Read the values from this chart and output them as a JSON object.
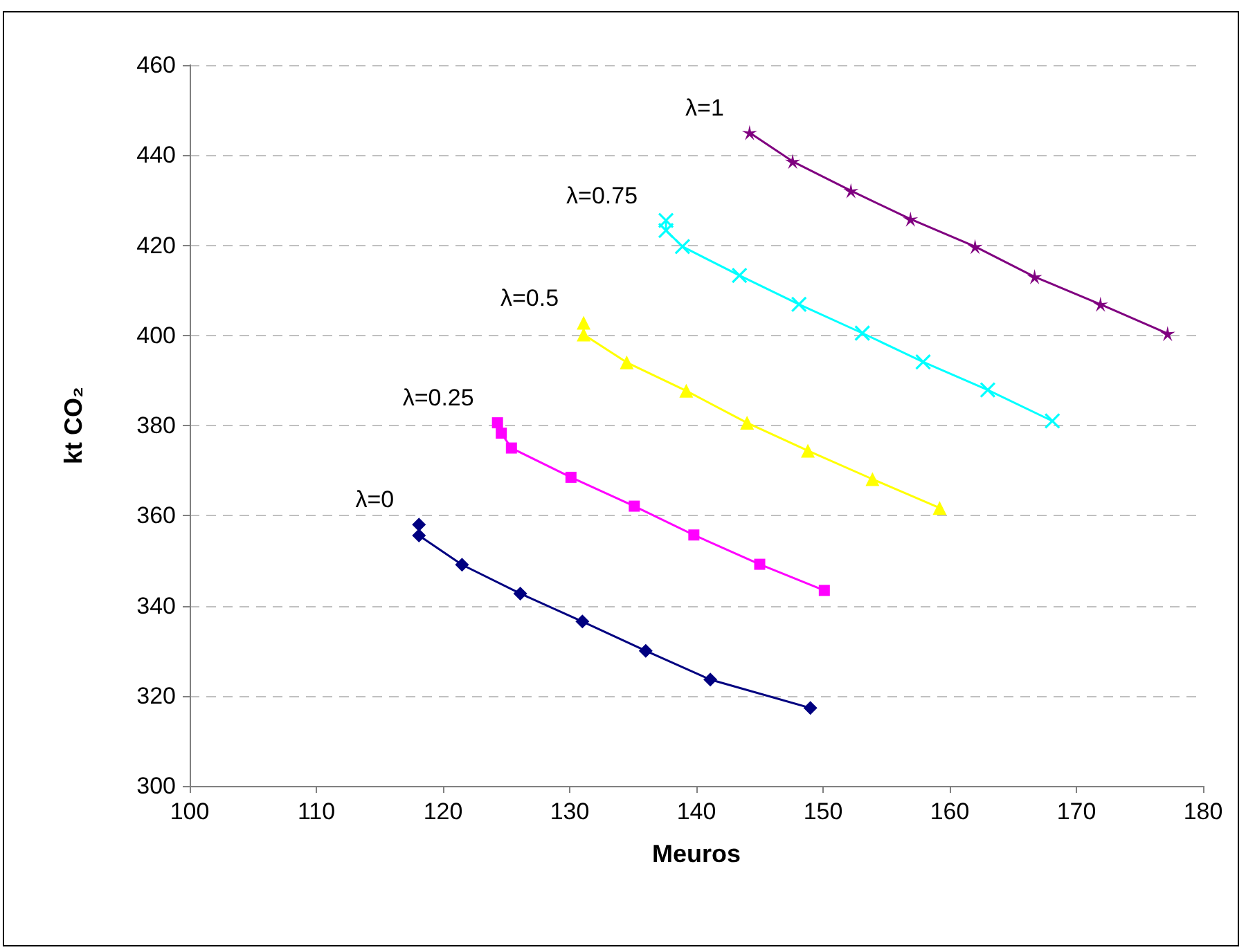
{
  "chart_data": {
    "type": "line",
    "xlabel": "Meuros",
    "ylabel": "kt CO₂",
    "xlim": [
      100,
      180
    ],
    "xticks": [
      100,
      110,
      120,
      130,
      140,
      150,
      160,
      170,
      180
    ],
    "ylim": [
      300,
      460
    ],
    "yticks": [
      300,
      320,
      340,
      360,
      380,
      400,
      420,
      440,
      460
    ],
    "grid": "y",
    "legend": false,
    "line_style": "solid",
    "series": [
      {
        "name": "λ=0",
        "color": "#000080",
        "marker": "diamond",
        "x": [
          118.1,
          118.1,
          121.5,
          126.1,
          131.0,
          136.0,
          141.1,
          149.0
        ],
        "values": [
          358.0,
          355.6,
          349.1,
          342.7,
          336.5,
          330.0,
          323.6,
          317.3
        ]
      },
      {
        "name": "λ=0.25",
        "color": "#ff00ff",
        "marker": "square",
        "x": [
          124.3,
          124.6,
          125.4,
          130.1,
          135.1,
          139.8,
          145.0,
          150.1
        ],
        "values": [
          380.6,
          378.3,
          375.0,
          368.5,
          362.1,
          355.7,
          349.2,
          343.4
        ]
      },
      {
        "name": "λ=0.5",
        "color": "#ffff00",
        "marker": "triangle",
        "x": [
          131.1,
          131.1,
          134.5,
          139.2,
          144.0,
          148.8,
          153.9,
          159.2
        ],
        "values": [
          402.8,
          400.2,
          394.0,
          387.7,
          380.6,
          374.4,
          368.1,
          361.7
        ]
      },
      {
        "name": "λ=0.75",
        "color": "#00ffff",
        "marker": "cross",
        "x": [
          137.6,
          137.6,
          138.9,
          143.4,
          148.1,
          153.1,
          157.9,
          163.0,
          168.1
        ],
        "values": [
          425.5,
          423.3,
          419.7,
          413.3,
          406.9,
          400.5,
          394.1,
          387.9,
          381.0
        ]
      },
      {
        "name": "λ=1",
        "color": "#800080",
        "marker": "star",
        "x": [
          144.2,
          147.6,
          152.2,
          156.9,
          162.0,
          166.7,
          171.9,
          177.2
        ],
        "values": [
          445.0,
          438.6,
          432.1,
          425.8,
          419.7,
          413.0,
          406.9,
          400.4
        ]
      }
    ]
  }
}
